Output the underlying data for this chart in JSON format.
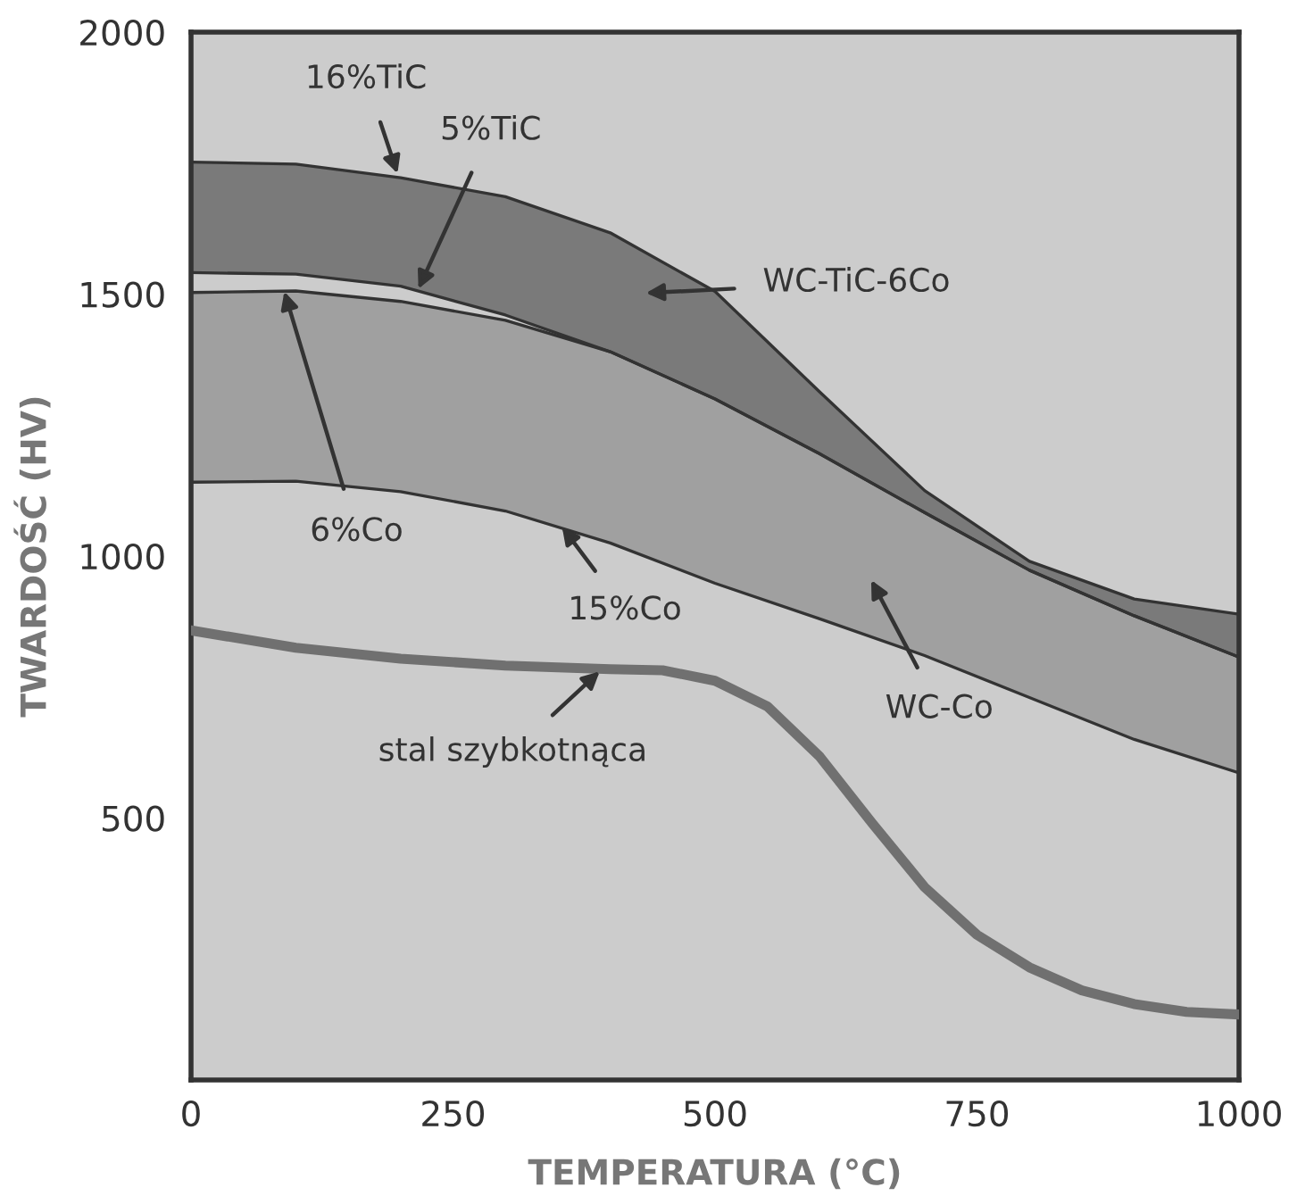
{
  "chart_data": {
    "type": "line",
    "xlabel": "TEMPERATURA (°C)",
    "ylabel": "TWARDOŚĆ (HV)",
    "xlim": [
      0,
      1000
    ],
    "ylim": [
      0,
      2000
    ],
    "xticks": [
      0,
      250,
      500,
      750,
      1000
    ],
    "yticks": [
      500,
      1000,
      1500,
      2000
    ],
    "series": [
      {
        "color": "#333333",
        "x": [
          0,
          100,
          200,
          300,
          400,
          500,
          600,
          700,
          800,
          900,
          1000
        ],
        "values": [
          1752,
          1748,
          1722,
          1686,
          1617,
          1505,
          1313,
          1125,
          990,
          918,
          889
        ],
        "lower": [
          1541,
          1538,
          1515,
          1460,
          1390,
          1300,
          1195,
          1083,
          973,
          886,
          807
        ],
        "upper": [
          1752,
          1748,
          1722,
          1686,
          1617,
          1505,
          1313,
          1125,
          990,
          918,
          889
        ]
      },
      {
        "color": "#333333",
        "x": [
          0,
          100,
          200,
          300,
          400,
          500,
          600,
          700,
          800,
          900,
          1000
        ],
        "values": [
          1503,
          1506,
          1486,
          1450,
          1390,
          1300,
          1195,
          1083,
          973,
          886,
          807
        ],
        "lower": [
          1141,
          1143,
          1123,
          1086,
          1025,
          948,
          880,
          810,
          730,
          650,
          586
        ],
        "upper": [
          1503,
          1506,
          1486,
          1450,
          1390,
          1300,
          1195,
          1083,
          973,
          886,
          807
        ]
      },
      {
        "color": "#333333",
        "x": [
          0,
          100,
          200,
          300,
          400,
          500,
          600,
          700,
          800,
          900,
          1000
        ],
        "values": [
          1541,
          1538,
          1515,
          1460,
          1390,
          1300,
          1195,
          1083,
          973,
          886,
          807
        ]
      },
      {
        "color": "#333333",
        "x": [
          0,
          100,
          200,
          300,
          400,
          500,
          600,
          700,
          800,
          900,
          1000
        ],
        "values": [
          1141,
          1143,
          1123,
          1086,
          1025,
          948,
          880,
          810,
          730,
          650,
          586
        ]
      },
      {
        "color": "#707070",
        "x": [
          0,
          100,
          200,
          300,
          400,
          450,
          500,
          550,
          600,
          650,
          700,
          750,
          800,
          850,
          900,
          950,
          1000
        ],
        "values": [
          858,
          825,
          804,
          791,
          784,
          782,
          762,
          713,
          617,
          490,
          368,
          277,
          215,
          171,
          145,
          130,
          125
        ]
      }
    ],
    "annotations": [
      {
        "text": "16%TiC",
        "x": 197,
        "y": 1730
      },
      {
        "text": "5%TiC",
        "x": 217,
        "y": 1510
      },
      "WC-TiC-6Co",
      {
        "text": "6%Co",
        "x": 89,
        "y": 1505
      },
      {
        "text": "15%Co",
        "x": 354,
        "y": 1056
      },
      "WC-Co",
      {
        "text": "stal szybkotnąca",
        "x": 390,
        "y": 780
      }
    ]
  }
}
